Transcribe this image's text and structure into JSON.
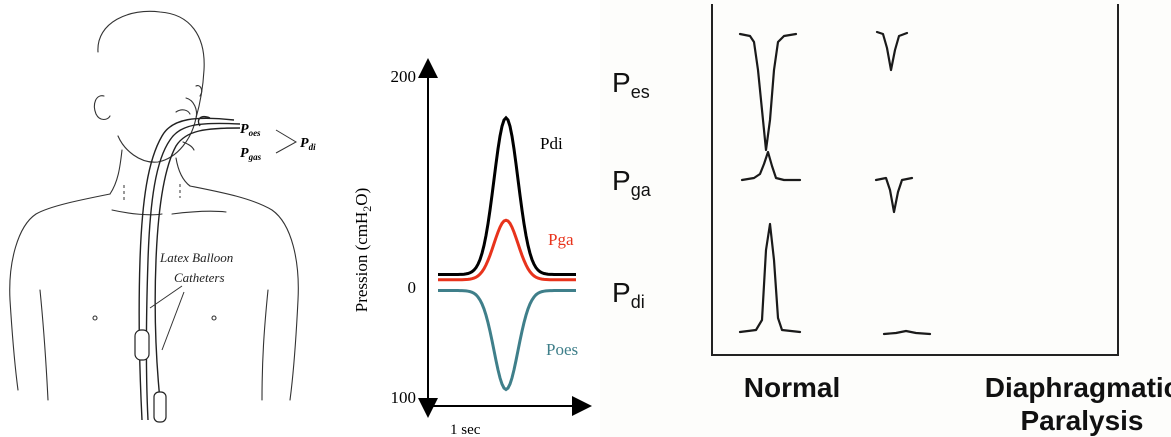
{
  "anatomy": {
    "label_poes": "P",
    "label_poes_sub": "oes",
    "label_pgas": "P",
    "label_pgas_sub": "gas",
    "label_pdi": "P",
    "label_pdi_sub": "di",
    "catheter_label_line1": "Latex Balloon",
    "catheter_label_line2": "Catheters"
  },
  "chart_data": {
    "type": "line",
    "ylabel": "Pression (cmH2O)",
    "xlabel": "1 sec",
    "yticks": [
      "200",
      "0",
      "100"
    ],
    "series": [
      {
        "name": "Pdi",
        "color": "#000000",
        "baseline": 10,
        "peak": 160
      },
      {
        "name": "Pga",
        "color": "#e8331c",
        "baseline": 5,
        "peak": 62
      },
      {
        "name": "Poes",
        "color": "#3f7f8a",
        "baseline": -5,
        "peak": -95
      }
    ]
  },
  "traces": {
    "row_labels": [
      {
        "main": "P",
        "sub": "es"
      },
      {
        "main": "P",
        "sub": "ga"
      },
      {
        "main": "P",
        "sub": "di"
      }
    ],
    "columns": [
      "Normal",
      "Diaphragmatic",
      "Paralysis"
    ]
  }
}
